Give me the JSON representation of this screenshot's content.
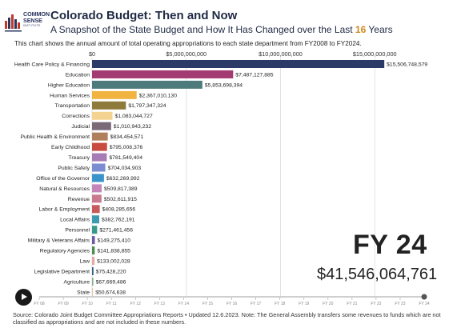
{
  "header": {
    "logo_line1": "COMMON",
    "logo_line2": "SENSE",
    "logo_line3": "INSTITUTE",
    "title": "Colorado Budget: Then and Now",
    "subtitle_before": "A Snapshot of the State Budget and How It Has Changed over the Last ",
    "subtitle_number": "16",
    "subtitle_after": " Years",
    "description": "This chart shows the annual amount of total operating appropriations to each state department from FY2008 to FY2024."
  },
  "chart_data": {
    "type": "bar",
    "orientation": "horizontal",
    "xlim": [
      0,
      15500000000
    ],
    "x_ticks": [
      0,
      5000000000,
      10000000000,
      15000000000
    ],
    "x_tick_labels": [
      "$0",
      "$5,000,000,000",
      "$10,000,000,000",
      "$15,000,000,000"
    ],
    "grid": true,
    "categories": [
      "Health Care Policy & Financing",
      "Education",
      "Higher Education",
      "Human Services",
      "Transportation",
      "Corrections",
      "Judicial",
      "Public Health & Environment",
      "Early Childhood",
      "Treasury",
      "Public Safety",
      "Office of the Governor",
      "Natural & Resources",
      "Revenue",
      "Labor & Employment",
      "Local Affairs",
      "Personnel",
      "Military & Veterans Affairs",
      "Regulatory Agencies",
      "Law",
      "Legislative Department",
      "Agriculture",
      "State"
    ],
    "values": [
      15506748579,
      7487127885,
      5853698394,
      2367010130,
      1797347324,
      1083044727,
      1010943232,
      834454571,
      795008376,
      781549404,
      704034903,
      632269992,
      509817389,
      502611915,
      408285656,
      382762191,
      271461456,
      149275410,
      141838855,
      133002028,
      75428220,
      67669486,
      50674638
    ],
    "value_labels": [
      "$15,506,748,579",
      "$7,487,127,885",
      "$5,853,698,394",
      "$2,367,010,130",
      "$1,797,347,324",
      "$1,083,044,727",
      "$1,010,943,232",
      "$834,454,571",
      "$795,008,376",
      "$781,549,404",
      "$704,034,903",
      "$632,269,992",
      "$509,817,389",
      "$502,611,915",
      "$408,285,656",
      "$382,762,191",
      "$271,461,456",
      "$149,275,410",
      "$141,838,855",
      "$133,002,028",
      "$75,428,220",
      "$67,669,486",
      "$50,674,638"
    ],
    "colors": [
      "#2b3a67",
      "#a23b72",
      "#4d7a7a",
      "#f2b441",
      "#8e7a3a",
      "#f3d38f",
      "#7a6a78",
      "#b0805c",
      "#c94a3f",
      "#a77bb6",
      "#7b8cd1",
      "#3a93c9",
      "#c486b8",
      "#c97a8f",
      "#c85a5a",
      "#3f9bb0",
      "#3a9a8a",
      "#6a5aa8",
      "#4f8c4f",
      "#e6a9a0",
      "#2f5f8a",
      "#7fae8a",
      "#e7c7a4"
    ],
    "period": "FY 24",
    "total": "$41,546,064,761",
    "timeline_labels": [
      "FY 08",
      "FY 09",
      "FY 10",
      "FY 11",
      "FY 12",
      "FY 13",
      "FY 14",
      "FY 15",
      "FY 16",
      "FY 17",
      "FY 18",
      "FY 19",
      "FY 20",
      "FY 21",
      "FY 22",
      "FY 23",
      "FY 24"
    ],
    "timeline_current": "FY 24"
  },
  "controls": {
    "play_label": "play"
  },
  "footer": {
    "source": "Source: Colorado Joint Budget Committee Appropriations Reports • Updated 12.6.2023. Note: The General Assembly transfers some revenues to funds which are not classified as appropriations and are not included in these numbers."
  }
}
